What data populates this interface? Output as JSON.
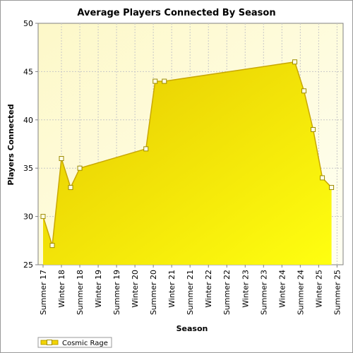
{
  "chart_data": {
    "type": "area",
    "title": "Average Players Connected By Season",
    "xlabel": "Season",
    "ylabel": "Players Connected",
    "ylim": [
      25,
      50
    ],
    "y_ticks": [
      25,
      30,
      35,
      40,
      45,
      50
    ],
    "x_ticks": [
      "Summer 17",
      "Winter 18",
      "Summer 18",
      "Winter 19",
      "Summer 19",
      "Winter 20",
      "Summer 20",
      "Winter 21",
      "Summer 21",
      "Winter 22",
      "Summer 22",
      "Winter 23",
      "Summer 23",
      "Winter 24",
      "Summer 24",
      "Winter 25",
      "Summer 25"
    ],
    "grid": true,
    "legend_position": "bottom-left",
    "series": [
      {
        "name": "Cosmic Rage",
        "color": "#f2d400",
        "points": [
          {
            "x": 0.0,
            "y": 30
          },
          {
            "x": 0.5,
            "y": 27
          },
          {
            "x": 1.0,
            "y": 36
          },
          {
            "x": 1.5,
            "y": 33
          },
          {
            "x": 2.0,
            "y": 35
          },
          {
            "x": 5.6,
            "y": 37
          },
          {
            "x": 6.1,
            "y": 44
          },
          {
            "x": 6.6,
            "y": 44
          },
          {
            "x": 13.7,
            "y": 46
          },
          {
            "x": 14.2,
            "y": 43
          },
          {
            "x": 14.7,
            "y": 39
          },
          {
            "x": 15.2,
            "y": 34
          },
          {
            "x": 15.7,
            "y": 33
          }
        ]
      }
    ]
  }
}
